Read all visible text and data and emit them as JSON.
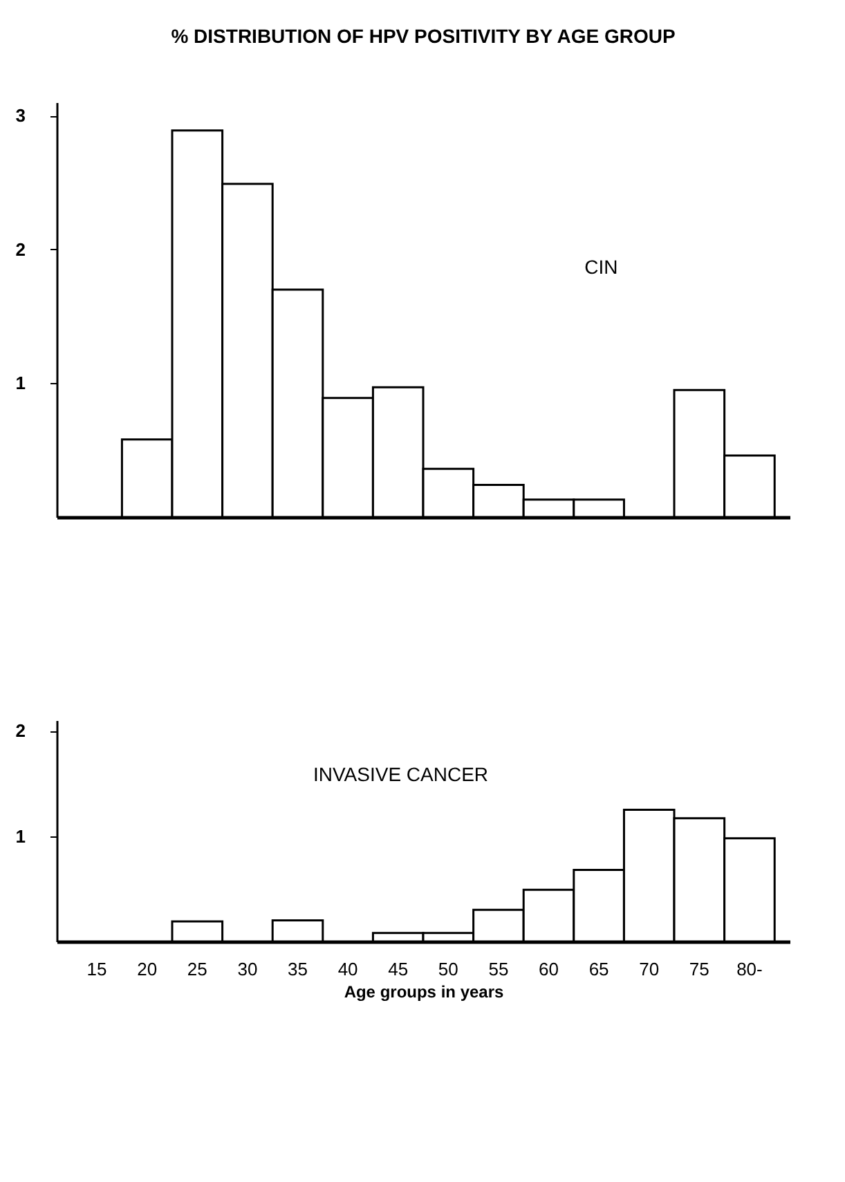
{
  "chart_data": [
    {
      "type": "bar",
      "title": "% DISTRIBUTION OF HPV POSITIVITY BY AGE GROUP",
      "categories": [
        null,
        null,
        null,
        null,
        null,
        null,
        null,
        null,
        null,
        null,
        null,
        null,
        null,
        null
      ],
      "values": [
        null,
        0.58,
        2.89,
        2.49,
        1.7,
        0.89,
        0.97,
        0.36,
        0.24,
        0.13,
        0.13,
        null,
        0.95,
        0.46
      ],
      "color": "#ffffff",
      "ylim": [
        0,
        3.1
      ],
      "yticks": [
        1,
        2,
        3
      ],
      "grid": false,
      "annotations": [
        "CIN"
      ]
    },
    {
      "type": "bar",
      "xlabel": "Age groups in years",
      "categories": [
        "15",
        "20",
        "25",
        "30",
        "35",
        "40",
        "45",
        "50",
        "55",
        "60",
        "65",
        "70",
        "75",
        "80-"
      ],
      "values": [
        null,
        null,
        0.19,
        null,
        0.2,
        null,
        0.08,
        0.08,
        0.3,
        0.49,
        0.68,
        1.25,
        1.17,
        0.98
      ],
      "color": "#ffffff",
      "ylim": [
        0,
        2.1
      ],
      "yticks": [
        1,
        2
      ],
      "grid": false,
      "annotations": [
        "INVASIVE CANCER"
      ]
    }
  ]
}
